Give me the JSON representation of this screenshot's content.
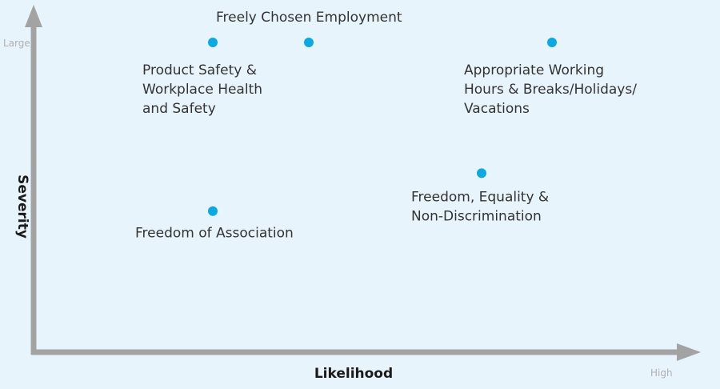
{
  "chart_data": {
    "type": "scatter",
    "xlabel": "Likelihood",
    "ylabel": "Severity",
    "x_end_label": "High",
    "y_end_label": "Large",
    "xlim": [
      0,
      100
    ],
    "ylim": [
      0,
      100
    ],
    "grid": false,
    "colors": {
      "point": "#0ca8e0",
      "axis": "#a3a3a3",
      "background": "#e8f4fc"
    },
    "points": [
      {
        "x": 28,
        "y": 90,
        "label_lines": [
          "Product Safety &",
          "Workplace Health",
          "and Safety"
        ]
      },
      {
        "x": 43,
        "y": 90,
        "label_lines": [
          "Freely Chosen Employment"
        ]
      },
      {
        "x": 81,
        "y": 90,
        "label_lines": [
          "Appropriate Working",
          "Hours & Breaks/Holidays/",
          "Vacations"
        ]
      },
      {
        "x": 70,
        "y": 52,
        "label_lines": [
          "Freedom, Equality &",
          "Non-Discrimination"
        ]
      },
      {
        "x": 28,
        "y": 41,
        "label_lines": [
          "Freedom of Association"
        ]
      }
    ]
  }
}
